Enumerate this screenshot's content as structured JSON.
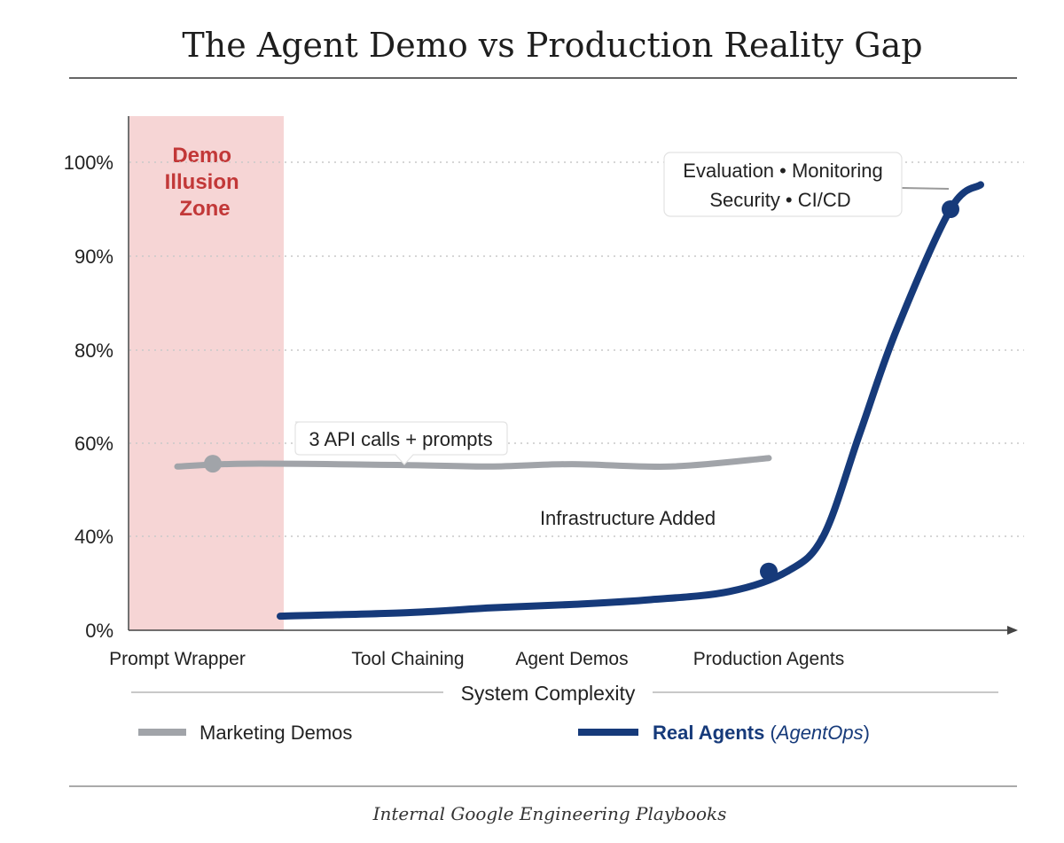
{
  "title": "The Agent Demo vs Production Reality Gap",
  "footer": "Internal Google Engineering Playbooks",
  "colors": {
    "marketing": "#a1a4a9",
    "real": "#163a7a",
    "zone_fill": "#f6d5d5",
    "zone_text": "#c23838"
  },
  "chart_data": {
    "type": "line",
    "title": "The Agent Demo vs Production Reality Gap",
    "xlabel": "System Complexity",
    "ylabel": "",
    "ylim": [
      0,
      100
    ],
    "yticks": [
      0,
      40,
      60,
      80,
      90,
      100
    ],
    "ytick_labels": [
      "0%",
      "40%",
      "60%",
      "80%",
      "90%",
      "100%"
    ],
    "categories": [
      "Prompt Wrapper",
      "Tool Chaining",
      "Agent Demos",
      "Production Agents"
    ],
    "series": [
      {
        "name": "Marketing Demos",
        "x": [
          0.0,
          0.5,
          1.0,
          1.5,
          2.0,
          2.5,
          3.0
        ],
        "values": [
          55.0,
          55.6,
          55.3,
          55.0,
          55.5,
          55.0,
          56.8
        ]
      },
      {
        "name": "Real Agents",
        "x": [
          0.6,
          1.0,
          1.5,
          2.0,
          2.4,
          2.8,
          3.1,
          3.3,
          3.5,
          3.7,
          4.0,
          4.3
        ],
        "values": [
          6.0,
          7.5,
          9.5,
          11.0,
          13.0,
          16.5,
          25.0,
          40.0,
          62.0,
          82.0,
          95.0,
          97.6
        ]
      }
    ],
    "points": [
      {
        "series": "Marketing Demos",
        "x": 0.25,
        "y": 55.6
      },
      {
        "series": "Real Agents",
        "x": 3.0,
        "y": 25.0
      },
      {
        "series": "Real Agents",
        "x": 4.0,
        "y": 95.0
      }
    ],
    "shaded_region": {
      "label": [
        "Demo",
        "Illusion",
        "Zone"
      ],
      "x_range": [
        -0.25,
        0.3
      ]
    },
    "annotations": [
      {
        "text": "3 API calls + prompts",
        "series": "Marketing Demos"
      },
      {
        "text": "Infrastructure Added",
        "series": "Real Agents"
      },
      {
        "lines": [
          "Evaluation • Monitoring",
          "Security • CI/CD"
        ],
        "series": "Real Agents"
      }
    ],
    "legend": [
      {
        "label": "Marketing Demos",
        "series": "Marketing Demos"
      },
      {
        "label": "Real Agents",
        "sub": "AgentOps",
        "series": "Real Agents"
      }
    ],
    "legend_position": "bottom",
    "grid": true
  }
}
